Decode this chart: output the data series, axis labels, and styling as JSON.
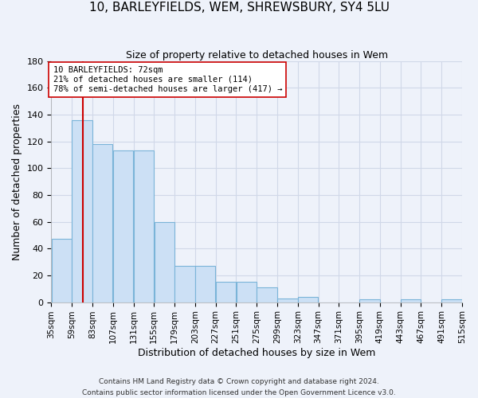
{
  "title": "10, BARLEYFIELDS, WEM, SHREWSBURY, SY4 5LU",
  "subtitle": "Size of property relative to detached houses in Wem",
  "xlabel": "Distribution of detached houses by size in Wem",
  "ylabel": "Number of detached properties",
  "bar_values": [
    47,
    136,
    118,
    113,
    113,
    60,
    27,
    27,
    15,
    15,
    11,
    3,
    4,
    0,
    0,
    2,
    0,
    2,
    0,
    2
  ],
  "bin_labels": [
    "35sqm",
    "59sqm",
    "83sqm",
    "107sqm",
    "131sqm",
    "155sqm",
    "179sqm",
    "203sqm",
    "227sqm",
    "251sqm",
    "275sqm",
    "299sqm",
    "323sqm",
    "347sqm",
    "371sqm",
    "395sqm",
    "419sqm",
    "443sqm",
    "467sqm",
    "491sqm",
    "515sqm"
  ],
  "bar_color": "#cce0f5",
  "bar_edge_color": "#7ab4d8",
  "property_line_x": 72,
  "property_line_label": "10 BARLEYFIELDS: 72sqm",
  "annotation_line1": "21% of detached houses are smaller (114)",
  "annotation_line2": "78% of semi-detached houses are larger (417) →",
  "red_line_color": "#cc0000",
  "annotation_box_color": "#ffffff",
  "annotation_box_edge": "#cc0000",
  "ylim": [
    0,
    180
  ],
  "yticks": [
    0,
    20,
    40,
    60,
    80,
    100,
    120,
    140,
    160,
    180
  ],
  "footer": "Contains HM Land Registry data © Crown copyright and database right 2024.\nContains public sector information licensed under the Open Government Licence v3.0.",
  "bg_color": "#eef2fa",
  "grid_color": "#d0d8e8"
}
